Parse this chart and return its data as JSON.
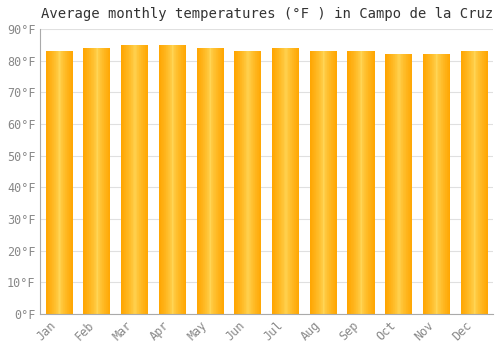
{
  "title": "Average monthly temperatures (°F ) in Campo de la Cruz",
  "months": [
    "Jan",
    "Feb",
    "Mar",
    "Apr",
    "May",
    "Jun",
    "Jul",
    "Aug",
    "Sep",
    "Oct",
    "Nov",
    "Dec"
  ],
  "values": [
    83,
    84,
    85,
    85,
    84,
    83,
    84,
    83,
    83,
    82,
    82,
    83
  ],
  "bar_color_center": "#FFD060",
  "bar_color_edge": "#FFA800",
  "ylim": [
    0,
    90
  ],
  "yticks": [
    0,
    10,
    20,
    30,
    40,
    50,
    60,
    70,
    80,
    90
  ],
  "ytick_labels": [
    "0°F",
    "10°F",
    "20°F",
    "30°F",
    "40°F",
    "50°F",
    "60°F",
    "70°F",
    "80°F",
    "90°F"
  ],
  "background_color": "#FFFFFF",
  "grid_color": "#E0E0E0",
  "title_fontsize": 10,
  "tick_fontsize": 8.5,
  "title_color": "#333333",
  "tick_color": "#888888",
  "spine_color": "#AAAAAA"
}
